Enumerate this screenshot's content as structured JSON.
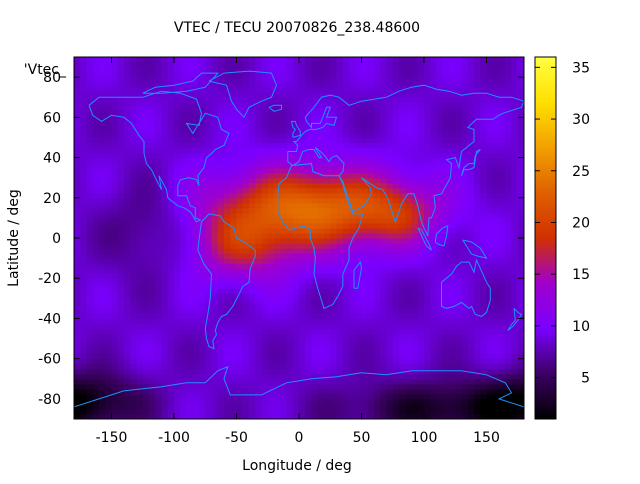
{
  "chart_data": {
    "type": "heatmap",
    "title": "VTEC / TECU 20070826_238.48600",
    "xlabel": "Longitude / deg",
    "ylabel": "Latitude / deg",
    "key_label": "'Vtec_",
    "xlim": [
      -180,
      180
    ],
    "ylim": [
      -90,
      90
    ],
    "x_ticks": [
      -150,
      -100,
      -50,
      0,
      50,
      100,
      150
    ],
    "y_ticks": [
      -80,
      -60,
      -40,
      -20,
      0,
      20,
      40,
      60,
      80
    ],
    "colorbar": {
      "range": [
        1,
        36
      ],
      "ticks": [
        5,
        10,
        15,
        20,
        25,
        30,
        35
      ]
    },
    "grid": false,
    "overlay": "coastlines",
    "grid_spacing_deg": [
      5,
      2.5
    ],
    "field_model": {
      "background_tecu": 8.5,
      "peaks": [
        {
          "lon": 10,
          "lat": 15,
          "amplitude_tecu": 15,
          "lon_sigma": 55,
          "lat_sigma": 14
        },
        {
          "lon": -45,
          "lat": -5,
          "amplitude_tecu": 7,
          "lon_sigma": 30,
          "lat_sigma": 12
        },
        {
          "lon": 80,
          "lat": 12,
          "amplitude_tecu": 5,
          "lon_sigma": 22,
          "lat_sigma": 10
        }
      ],
      "troughs": [
        {
          "lon": 120,
          "lat": -85,
          "amplitude_tecu": -6,
          "lon_sigma": 60,
          "lat_sigma": 10
        },
        {
          "lon": -170,
          "lat": -80,
          "amplitude_tecu": -5,
          "lon_sigma": 30,
          "lat_sigma": 10
        },
        {
          "lon": -120,
          "lat": 5,
          "amplitude_tecu": -3,
          "lon_sigma": 25,
          "lat_sigma": 15
        }
      ]
    }
  },
  "colors": {
    "coastline": "#1e90ff",
    "palette": [
      "#000000",
      "#3c0064",
      "#7a00ff",
      "#a000cc",
      "#d03000",
      "#e06000",
      "#f2a000",
      "#ffe000",
      "#ffff40"
    ]
  }
}
